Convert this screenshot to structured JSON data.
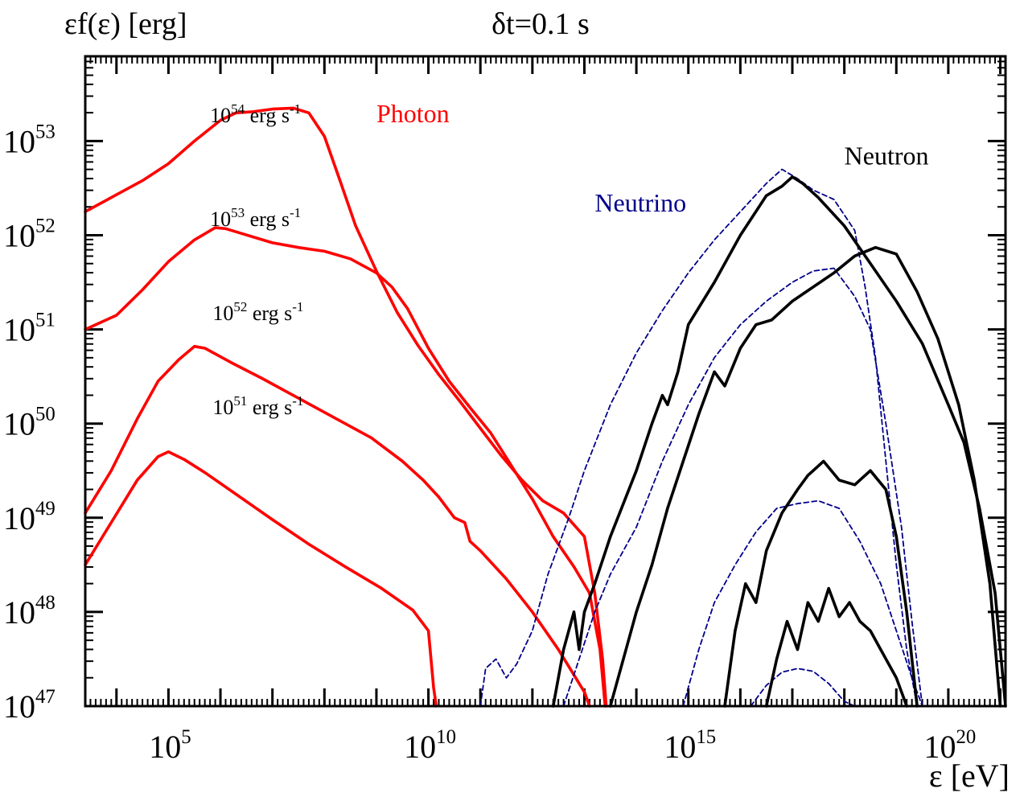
{
  "chart_data": {
    "type": "line",
    "title": "δt=0.1 s",
    "ylabel": "εf(ε) [erg]",
    "xlabel": "ε [eV]",
    "x_scale": "log",
    "y_scale": "log",
    "xlim_log10": [
      3.4,
      21.1
    ],
    "ylim_log10": [
      47,
      53.9
    ],
    "x_ticks": [
      {
        "base": "10",
        "exp": "5",
        "value": 5
      },
      {
        "base": "10",
        "exp": "10",
        "value": 10
      },
      {
        "base": "10",
        "exp": "15",
        "value": 15
      },
      {
        "base": "10",
        "exp": "20",
        "value": 20
      }
    ],
    "y_ticks": [
      {
        "base": "10",
        "exp": "47",
        "value": 47
      },
      {
        "base": "10",
        "exp": "48",
        "value": 48
      },
      {
        "base": "10",
        "exp": "49",
        "value": 49
      },
      {
        "base": "10",
        "exp": "50",
        "value": 50
      },
      {
        "base": "10",
        "exp": "51",
        "value": 51
      },
      {
        "base": "10",
        "exp": "52",
        "value": 52
      },
      {
        "base": "10",
        "exp": "53",
        "value": 53
      }
    ],
    "annotations": [
      {
        "name": "luminosity-label-54",
        "base": "10",
        "exp": "54",
        "rest": " erg s",
        "exp2": "-1",
        "x": 5.8,
        "y": 53.2
      },
      {
        "name": "luminosity-label-53",
        "base": "10",
        "exp": "53",
        "rest": " erg s",
        "exp2": "-1",
        "x": 5.8,
        "y": 52.1
      },
      {
        "name": "luminosity-label-52",
        "base": "10",
        "exp": "52",
        "rest": " erg s",
        "exp2": "-1",
        "x": 5.85,
        "y": 51.1
      },
      {
        "name": "luminosity-label-51",
        "base": "10",
        "exp": "51",
        "rest": " erg s",
        "exp2": "-1",
        "x": 5.85,
        "y": 50.1
      }
    ],
    "species_labels": [
      {
        "name": "photon-label",
        "text": "Photon",
        "color": "#ff0000",
        "x": 9.0,
        "y": 53.2
      },
      {
        "name": "neutrino-label",
        "text": "Neutrino",
        "color": "#00008b",
        "x": 13.2,
        "y": 52.25
      },
      {
        "name": "neutron-label",
        "text": "Neutron",
        "color": "#000000",
        "x": 18.0,
        "y": 52.75
      }
    ],
    "series": [
      {
        "species": "photon",
        "luminosity_log10": 54,
        "color": "#ff0000",
        "style": "solid",
        "x": [
          3.4,
          4.0,
          4.5,
          5.0,
          5.5,
          6.0,
          6.3,
          6.6,
          7.0,
          7.4,
          7.7,
          8.0,
          8.3,
          8.6,
          9.0,
          9.4,
          9.8,
          10.2,
          10.6,
          11.0,
          11.4,
          11.8,
          12.2,
          12.6,
          13.0,
          13.2,
          13.35,
          13.42
        ],
        "y": [
          52.25,
          52.43,
          52.58,
          52.76,
          53.0,
          53.22,
          53.3,
          53.31,
          53.34,
          53.35,
          53.3,
          53.05,
          52.58,
          52.1,
          51.62,
          51.18,
          50.83,
          50.52,
          50.24,
          49.95,
          49.66,
          49.4,
          49.18,
          49.05,
          48.8,
          48.2,
          47.5,
          47.0
        ]
      },
      {
        "species": "photon",
        "luminosity_log10": 53,
        "color": "#ff0000",
        "style": "solid",
        "x": [
          3.4,
          4.0,
          4.5,
          5.0,
          5.5,
          5.9,
          6.1,
          6.4,
          7.0,
          7.5,
          8.0,
          8.5,
          9.0,
          9.3,
          9.6,
          10.0,
          10.4,
          10.8,
          11.2,
          11.6,
          12.0,
          12.4,
          12.8,
          13.1,
          13.3,
          13.4
        ],
        "y": [
          51.0,
          51.15,
          51.42,
          51.72,
          51.95,
          52.08,
          52.07,
          52.02,
          51.92,
          51.87,
          51.83,
          51.75,
          51.6,
          51.45,
          51.22,
          50.8,
          50.45,
          50.17,
          49.9,
          49.55,
          49.2,
          48.8,
          48.48,
          48.2,
          47.6,
          47.0
        ]
      },
      {
        "species": "photon",
        "luminosity_log10": 52,
        "color": "#ff0000",
        "style": "solid",
        "x": [
          3.4,
          3.9,
          4.4,
          4.8,
          5.2,
          5.5,
          5.7,
          6.2,
          6.8,
          7.5,
          8.2,
          8.9,
          9.5,
          9.9,
          10.2,
          10.5,
          10.7,
          10.8,
          11.0,
          11.5,
          12.0,
          12.5,
          13.0,
          13.1
        ],
        "y": [
          49.05,
          49.5,
          50.05,
          50.45,
          50.68,
          50.82,
          50.8,
          50.65,
          50.48,
          50.27,
          50.06,
          49.85,
          49.6,
          49.4,
          49.22,
          49.0,
          48.95,
          48.75,
          48.65,
          48.35,
          48.0,
          47.6,
          47.15,
          47.0
        ]
      },
      {
        "species": "photon",
        "luminosity_log10": 51,
        "color": "#ff0000",
        "style": "solid",
        "x": [
          3.4,
          3.9,
          4.4,
          4.8,
          5.0,
          5.3,
          5.7,
          6.3,
          7.0,
          7.7,
          8.4,
          9.1,
          9.7,
          10.0,
          10.05,
          10.1,
          10.15
        ],
        "y": [
          48.5,
          48.95,
          49.4,
          49.65,
          49.7,
          49.62,
          49.48,
          49.25,
          48.98,
          48.72,
          48.48,
          48.25,
          48.02,
          47.8,
          47.5,
          47.2,
          47.0
        ]
      },
      {
        "species": "neutrino",
        "luminosity_log10": 54,
        "color": "#00008b",
        "style": "dashed",
        "x": [
          11.0,
          11.1,
          11.3,
          11.5,
          11.7,
          12.0,
          12.3,
          12.7,
          13.0,
          13.5,
          14.0,
          14.5,
          15.0,
          15.5,
          16.0,
          16.5,
          16.8,
          17.1,
          17.4,
          17.8,
          18.2,
          18.4,
          18.6,
          18.8,
          19.0,
          19.2,
          19.4
        ],
        "y": [
          47.0,
          47.4,
          47.5,
          47.3,
          47.45,
          47.8,
          48.4,
          49.0,
          49.5,
          50.2,
          50.75,
          51.2,
          51.6,
          51.95,
          52.25,
          52.55,
          52.7,
          52.6,
          52.48,
          52.38,
          52.05,
          51.45,
          50.7,
          49.6,
          48.5,
          47.6,
          47.0
        ]
      },
      {
        "species": "neutrino",
        "luminosity_log10": 53,
        "color": "#00008b",
        "style": "dashed",
        "x": [
          12.6,
          12.9,
          13.2,
          13.5,
          14.0,
          14.5,
          15.0,
          15.5,
          16.0,
          16.5,
          17.0,
          17.4,
          17.8,
          18.2,
          18.5,
          18.8,
          19.1,
          19.3,
          19.5
        ],
        "y": [
          47.0,
          47.5,
          48.0,
          48.4,
          48.9,
          49.6,
          50.2,
          50.7,
          51.05,
          51.3,
          51.5,
          51.62,
          51.65,
          51.35,
          51.0,
          50.0,
          48.9,
          47.9,
          47.0
        ]
      },
      {
        "species": "neutrino",
        "luminosity_log10": 52,
        "color": "#00008b",
        "style": "dashed",
        "x": [
          14.9,
          15.2,
          15.5,
          15.9,
          16.3,
          16.7,
          17.1,
          17.5,
          17.9,
          18.3,
          18.7,
          19.0,
          19.3,
          19.5
        ],
        "y": [
          47.0,
          47.6,
          48.1,
          48.5,
          48.85,
          49.1,
          49.15,
          49.18,
          49.1,
          48.75,
          48.3,
          47.8,
          47.3,
          47.0
        ]
      },
      {
        "species": "neutrino",
        "luminosity_log10": 51,
        "color": "#00008b",
        "style": "dashed",
        "x": [
          16.2,
          16.5,
          16.8,
          17.1,
          17.4,
          17.7,
          18.0,
          18.2
        ],
        "y": [
          47.0,
          47.22,
          47.36,
          47.4,
          47.37,
          47.24,
          47.05,
          47.0
        ]
      },
      {
        "species": "neutron",
        "luminosity_log10": 54,
        "color": "#000000",
        "style": "solid",
        "x": [
          12.4,
          12.6,
          12.8,
          12.9,
          13.0,
          13.2,
          13.5,
          14.0,
          14.3,
          14.5,
          14.6,
          14.8,
          15.0,
          15.5,
          16.0,
          16.5,
          16.8,
          17.0,
          17.2,
          17.5,
          18.0,
          18.5,
          19.0,
          19.5,
          20.0,
          20.3,
          20.6,
          20.9,
          21.1
        ],
        "y": [
          47.0,
          47.6,
          48.0,
          47.6,
          48.0,
          48.3,
          48.8,
          49.5,
          50.0,
          50.3,
          50.2,
          50.55,
          51.05,
          51.5,
          52.0,
          52.42,
          52.52,
          52.62,
          52.55,
          52.4,
          52.1,
          51.7,
          51.3,
          50.85,
          50.2,
          49.8,
          49.1,
          48.2,
          47.0
        ]
      },
      {
        "species": "neutron",
        "luminosity_log10": 53,
        "color": "#000000",
        "style": "solid",
        "x": [
          13.5,
          13.8,
          14.0,
          14.3,
          14.6,
          14.9,
          15.2,
          15.5,
          15.7,
          16.0,
          16.3,
          16.6,
          17.0,
          17.4,
          17.8,
          18.2,
          18.6,
          19.0,
          19.4,
          19.8,
          20.2,
          20.5,
          20.8,
          21.0
        ],
        "y": [
          47.0,
          47.6,
          48.0,
          48.5,
          49.1,
          49.6,
          50.1,
          50.55,
          50.4,
          50.8,
          51.05,
          51.1,
          51.3,
          51.45,
          51.6,
          51.78,
          51.87,
          51.8,
          51.4,
          50.9,
          50.2,
          49.4,
          48.3,
          47.0
        ]
      },
      {
        "species": "neutron",
        "luminosity_log10": 52,
        "color": "#000000",
        "style": "solid",
        "x": [
          15.7,
          15.9,
          16.1,
          16.3,
          16.5,
          16.8,
          17.1,
          17.3,
          17.6,
          17.9,
          18.2,
          18.5,
          18.8,
          19.0,
          19.2,
          19.4
        ],
        "y": [
          47.0,
          47.8,
          48.3,
          48.1,
          48.65,
          49.05,
          49.3,
          49.45,
          49.6,
          49.4,
          49.35,
          49.5,
          49.3,
          48.8,
          48.0,
          47.0
        ]
      },
      {
        "species": "neutron",
        "luminosity_log10": 51,
        "color": "#000000",
        "style": "solid",
        "x": [
          16.5,
          16.7,
          16.9,
          17.1,
          17.3,
          17.5,
          17.7,
          17.9,
          18.1,
          18.3,
          18.5,
          18.7,
          19.0,
          19.2
        ],
        "y": [
          47.0,
          47.5,
          47.9,
          47.6,
          48.1,
          47.9,
          48.25,
          47.95,
          48.1,
          47.9,
          47.8,
          47.6,
          47.3,
          47.0
        ]
      }
    ]
  }
}
